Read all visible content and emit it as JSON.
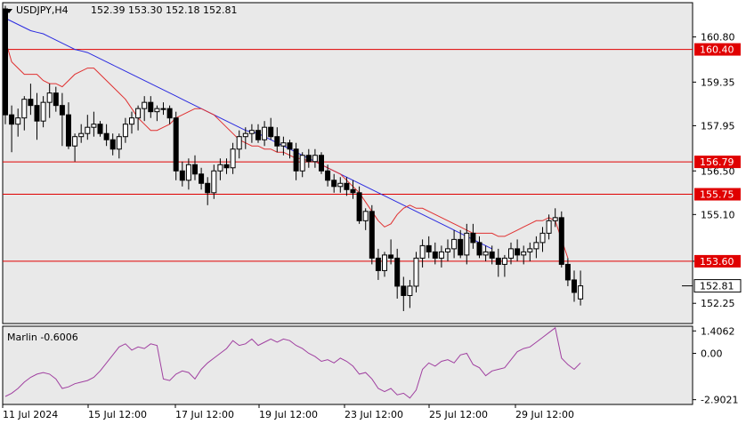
{
  "header": {
    "symbol": "USDJPY,H4",
    "ohlc": "152.39 153.30 152.18 152.81",
    "indicator": "Marlin -0.6006"
  },
  "colors": {
    "background": "#ffffff",
    "plot_bg": "#e9e9e9",
    "ma_fast": "#e03030",
    "ma_slow": "#2a2ae0",
    "level": "#e00000",
    "oscillator": "#a040a0",
    "candle": "#000000"
  },
  "chart_data": {
    "type": "candlestick",
    "symbol": "USDJPY",
    "timeframe": "H4",
    "price_ticks": [
      "160.80",
      "159.35",
      "157.95",
      "156.50",
      "155.10",
      "153.60",
      "152.25"
    ],
    "price_range": [
      151.6,
      161.9
    ],
    "levels": [
      "160.40",
      "156.79",
      "155.75",
      "153.60"
    ],
    "current_price": "152.81",
    "time_labels": [
      "11 Jul 2024",
      "15 Jul 12:00",
      "17 Jul 12:00",
      "19 Jul 12:00",
      "23 Jul 12:00",
      "25 Jul 12:00",
      "29 Jul 12:00"
    ],
    "candles": [
      [
        161.7,
        161.8,
        158.0,
        158.3
      ],
      [
        158.3,
        158.6,
        157.1,
        158.0
      ],
      [
        158.0,
        158.5,
        157.6,
        158.2
      ],
      [
        158.2,
        158.9,
        157.8,
        158.8
      ],
      [
        158.8,
        159.3,
        158.3,
        158.6
      ],
      [
        158.6,
        159.0,
        157.5,
        158.1
      ],
      [
        158.1,
        158.9,
        157.9,
        158.7
      ],
      [
        158.7,
        159.3,
        158.2,
        159.0
      ],
      [
        159.0,
        159.2,
        158.4,
        158.6
      ],
      [
        158.6,
        159.0,
        157.3,
        158.3
      ],
      [
        158.3,
        158.7,
        157.2,
        157.3
      ],
      [
        157.3,
        157.7,
        156.8,
        157.6
      ],
      [
        157.6,
        158.0,
        157.4,
        157.7
      ],
      [
        157.7,
        158.3,
        157.5,
        157.9
      ],
      [
        157.9,
        158.4,
        157.6,
        158.0
      ],
      [
        158.0,
        158.1,
        157.6,
        157.7
      ],
      [
        157.7,
        158.0,
        157.3,
        157.5
      ],
      [
        157.5,
        157.7,
        157.0,
        157.2
      ],
      [
        157.2,
        157.7,
        156.9,
        157.6
      ],
      [
        157.6,
        158.2,
        157.4,
        158.0
      ],
      [
        158.0,
        158.4,
        157.7,
        158.2
      ],
      [
        158.2,
        158.6,
        157.8,
        158.5
      ],
      [
        158.5,
        158.9,
        158.1,
        158.7
      ],
      [
        158.7,
        158.9,
        158.2,
        158.4
      ],
      [
        158.4,
        158.6,
        158.1,
        158.5
      ],
      [
        158.5,
        158.7,
        158.3,
        158.5
      ],
      [
        158.5,
        158.6,
        158.0,
        158.2
      ],
      [
        158.2,
        158.4,
        156.2,
        156.5
      ],
      [
        156.5,
        156.8,
        156.0,
        156.2
      ],
      [
        156.2,
        156.9,
        155.9,
        156.7
      ],
      [
        156.7,
        157.0,
        156.2,
        156.4
      ],
      [
        156.4,
        156.6,
        155.9,
        156.1
      ],
      [
        156.1,
        156.3,
        155.4,
        155.8
      ],
      [
        155.8,
        156.7,
        155.6,
        156.5
      ],
      [
        156.5,
        156.9,
        156.2,
        156.7
      ],
      [
        156.7,
        156.9,
        156.4,
        156.6
      ],
      [
        156.6,
        157.4,
        156.4,
        157.2
      ],
      [
        157.2,
        157.8,
        156.9,
        157.6
      ],
      [
        157.6,
        157.9,
        157.2,
        157.7
      ],
      [
        157.7,
        158.0,
        157.4,
        157.8
      ],
      [
        157.8,
        158.0,
        157.4,
        157.5
      ],
      [
        157.5,
        158.1,
        157.3,
        157.9
      ],
      [
        157.9,
        158.2,
        157.5,
        157.6
      ],
      [
        157.6,
        157.9,
        157.1,
        157.3
      ],
      [
        157.3,
        157.6,
        157.0,
        157.4
      ],
      [
        157.4,
        157.5,
        156.9,
        157.2
      ],
      [
        157.2,
        157.4,
        156.2,
        156.5
      ],
      [
        156.5,
        157.1,
        156.3,
        157.0
      ],
      [
        157.0,
        157.2,
        156.6,
        156.8
      ],
      [
        156.8,
        157.2,
        156.6,
        157.0
      ],
      [
        157.0,
        157.1,
        156.4,
        156.5
      ],
      [
        156.5,
        156.7,
        156.0,
        156.2
      ],
      [
        156.2,
        156.4,
        155.8,
        156.0
      ],
      [
        156.0,
        156.3,
        155.8,
        156.1
      ],
      [
        156.1,
        156.3,
        155.7,
        155.9
      ],
      [
        155.9,
        156.2,
        155.6,
        155.8
      ],
      [
        155.8,
        156.0,
        154.8,
        154.9
      ],
      [
        154.9,
        155.3,
        154.6,
        155.2
      ],
      [
        155.2,
        155.4,
        153.5,
        153.7
      ],
      [
        153.7,
        154.0,
        153.0,
        153.3
      ],
      [
        153.3,
        153.9,
        153.1,
        153.8
      ],
      [
        153.8,
        154.3,
        153.5,
        153.7
      ],
      [
        153.7,
        154.0,
        152.4,
        152.8
      ],
      [
        152.8,
        153.1,
        152.0,
        152.5
      ],
      [
        152.5,
        153.0,
        152.1,
        152.8
      ],
      [
        152.8,
        153.9,
        152.6,
        153.7
      ],
      [
        153.7,
        154.3,
        153.4,
        154.1
      ],
      [
        154.1,
        154.4,
        153.7,
        153.9
      ],
      [
        153.9,
        154.2,
        153.5,
        153.7
      ],
      [
        153.7,
        154.1,
        153.4,
        153.9
      ],
      [
        153.9,
        154.3,
        153.6,
        154.0
      ],
      [
        154.0,
        154.6,
        153.7,
        154.3
      ],
      [
        154.3,
        154.6,
        153.7,
        153.8
      ],
      [
        153.8,
        154.8,
        153.5,
        154.5
      ],
      [
        154.5,
        154.8,
        154.0,
        154.2
      ],
      [
        154.2,
        154.4,
        153.7,
        153.8
      ],
      [
        153.8,
        154.1,
        153.6,
        153.9
      ],
      [
        153.9,
        154.1,
        153.5,
        153.7
      ],
      [
        153.7,
        154.0,
        153.1,
        153.5
      ],
      [
        153.5,
        153.8,
        153.1,
        153.7
      ],
      [
        153.7,
        154.2,
        153.5,
        154.0
      ],
      [
        154.0,
        154.3,
        153.6,
        153.8
      ],
      [
        153.8,
        154.1,
        153.5,
        153.9
      ],
      [
        153.9,
        154.2,
        153.6,
        154.0
      ],
      [
        154.0,
        154.4,
        153.7,
        154.2
      ],
      [
        154.2,
        154.7,
        153.9,
        154.5
      ],
      [
        154.5,
        155.1,
        154.3,
        154.9
      ],
      [
        154.9,
        155.3,
        154.7,
        155.0
      ],
      [
        155.0,
        155.2,
        153.4,
        153.5
      ],
      [
        153.5,
        153.7,
        152.8,
        153.0
      ],
      [
        153.0,
        153.3,
        152.3,
        152.6
      ],
      [
        152.39,
        153.3,
        152.18,
        152.81
      ]
    ],
    "ma_fast": [
      160.7,
      160.0,
      159.8,
      159.6,
      159.6,
      159.6,
      159.4,
      159.3,
      159.3,
      159.2,
      159.4,
      159.6,
      159.7,
      159.8,
      159.8,
      159.6,
      159.4,
      159.2,
      159.0,
      158.8,
      158.5,
      158.2,
      158.0,
      157.8,
      157.8,
      157.9,
      158.0,
      158.2,
      158.3,
      158.4,
      158.5,
      158.5,
      158.4,
      158.3,
      158.1,
      157.9,
      157.7,
      157.5,
      157.4,
      157.3,
      157.3,
      157.2,
      157.2,
      157.1,
      157.1,
      157.0,
      156.9,
      156.9,
      156.8,
      156.8,
      156.7,
      156.6,
      156.5,
      156.4,
      156.2,
      156.0,
      155.8,
      155.5,
      155.2,
      154.9,
      154.7,
      154.8,
      155.1,
      155.3,
      155.4,
      155.3,
      155.3,
      155.2,
      155.1,
      155.0,
      154.9,
      154.8,
      154.7,
      154.6,
      154.5,
      154.5,
      154.5,
      154.5,
      154.4,
      154.4,
      154.5,
      154.6,
      154.7,
      154.8,
      154.9,
      154.9,
      155.0,
      154.9,
      154.3,
      153.7
    ],
    "ma_slow": [
      161.4,
      161.3,
      161.2,
      161.1,
      161.0,
      160.95,
      160.9,
      160.8,
      160.7,
      160.6,
      160.5,
      160.4,
      160.35,
      160.3,
      160.2,
      160.1,
      160.0,
      159.9,
      159.8,
      159.7,
      159.6,
      159.5,
      159.4,
      159.3,
      159.2,
      159.1,
      159.0,
      158.9,
      158.8,
      158.7,
      158.6,
      158.5,
      158.4,
      158.3,
      158.2,
      158.1,
      158.0,
      157.9,
      157.8,
      157.75,
      157.7,
      157.6,
      157.5,
      157.4,
      157.3,
      157.2,
      157.1,
      157.0,
      156.9,
      156.8,
      156.7,
      156.6,
      156.5,
      156.4,
      156.3,
      156.2,
      156.1,
      156.0,
      155.9,
      155.8,
      155.7,
      155.6,
      155.5,
      155.4,
      155.3,
      155.2,
      155.1,
      155.0,
      154.9,
      154.8,
      154.7,
      154.6,
      154.5,
      154.4,
      154.3,
      154.2,
      154.1,
      154.0
    ],
    "oscillator": {
      "name": "Marlin",
      "value": "-0.6006",
      "ticks": [
        "1.4062",
        "0.00",
        "-2.9021"
      ],
      "range": [
        -3.2,
        1.7
      ],
      "values": [
        -2.7,
        -2.5,
        -2.2,
        -1.8,
        -1.5,
        -1.3,
        -1.2,
        -1.3,
        -1.6,
        -2.2,
        -2.1,
        -1.9,
        -1.8,
        -1.7,
        -1.5,
        -1.1,
        -0.6,
        -0.1,
        0.4,
        0.6,
        0.2,
        0.4,
        0.3,
        0.6,
        0.5,
        -1.6,
        -1.7,
        -1.3,
        -1.1,
        -1.2,
        -1.6,
        -1.0,
        -0.6,
        -0.3,
        0.0,
        0.3,
        0.8,
        0.5,
        0.6,
        0.9,
        0.5,
        0.7,
        0.9,
        0.7,
        0.9,
        0.8,
        0.5,
        0.3,
        0.0,
        -0.2,
        -0.5,
        -0.4,
        -0.6,
        -0.3,
        -0.5,
        -0.8,
        -1.3,
        -1.2,
        -1.6,
        -2.2,
        -2.4,
        -2.2,
        -2.6,
        -2.5,
        -2.8,
        -2.3,
        -1.0,
        -0.6,
        -0.8,
        -0.5,
        -0.4,
        -0.6,
        -0.1,
        0.0,
        -0.7,
        -0.9,
        -1.4,
        -1.1,
        -1.0,
        -0.9,
        -0.4,
        0.1,
        0.3,
        0.4,
        0.7,
        1.0,
        1.3,
        1.6,
        -0.3,
        -0.7,
        -1.0,
        -0.6
      ]
    }
  }
}
